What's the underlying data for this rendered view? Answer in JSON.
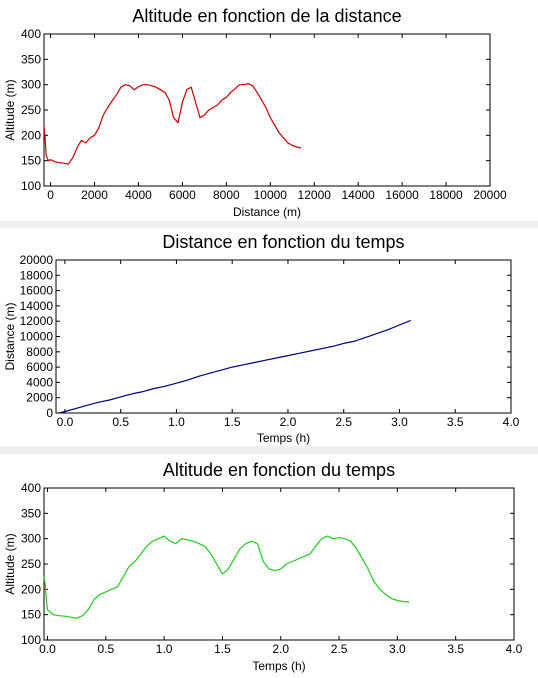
{
  "chart_data": [
    {
      "type": "line",
      "title": "Altitude en fonction de la distance",
      "xlabel": "Distance (m)",
      "ylabel": "Altitude (m)",
      "xlim": [
        -300,
        20000
      ],
      "ylim": [
        100,
        400
      ],
      "xticks": [
        0,
        2000,
        4000,
        6000,
        8000,
        10000,
        12000,
        14000,
        16000,
        18000,
        20000
      ],
      "yticks": [
        100,
        150,
        200,
        250,
        300,
        350,
        400
      ],
      "grid": false,
      "color": "#cc0000",
      "series": [
        {
          "x": [
            -300,
            -250,
            -200,
            -100,
            0,
            200,
            400,
            600,
            800,
            1000,
            1200,
            1400,
            1600,
            1800,
            2000,
            2200,
            2400,
            2600,
            2800,
            3000,
            3200,
            3400,
            3600,
            3800,
            4000,
            4200,
            4400,
            4600,
            4800,
            5000,
            5200,
            5400,
            5600,
            5800,
            6000,
            6200,
            6400,
            6600,
            6800,
            7000,
            7200,
            7400,
            7600,
            7800,
            8000,
            8200,
            8400,
            8600,
            8800,
            9000,
            9200,
            9400,
            9600,
            9800,
            10000,
            10200,
            10400,
            10600,
            10800,
            11000,
            11200,
            11400
          ],
          "y": [
            220,
            195,
            160,
            150,
            152,
            148,
            146,
            145,
            143,
            155,
            175,
            190,
            185,
            195,
            200,
            215,
            240,
            255,
            268,
            280,
            295,
            300,
            298,
            290,
            296,
            300,
            300,
            298,
            295,
            290,
            285,
            270,
            235,
            225,
            265,
            290,
            295,
            265,
            235,
            240,
            250,
            255,
            260,
            270,
            275,
            285,
            292,
            300,
            300,
            302,
            298,
            285,
            270,
            255,
            235,
            220,
            205,
            195,
            185,
            180,
            177,
            175
          ]
        }
      ]
    },
    {
      "type": "line",
      "title": "Distance en fonction du temps",
      "xlabel": "Temps (h)",
      "ylabel": "Distance (m)",
      "xlim": [
        -0.08,
        4.0
      ],
      "ylim": [
        0,
        20000
      ],
      "xticks": [
        0.0,
        0.5,
        1.0,
        1.5,
        2.0,
        2.5,
        3.0,
        3.5,
        4.0
      ],
      "xtick_labels": [
        "0.0",
        "0.5",
        "1.0",
        "1.5",
        "2.0",
        "2.5",
        "3.0",
        "3.5",
        "4.0"
      ],
      "yticks": [
        0,
        2000,
        4000,
        6000,
        8000,
        10000,
        12000,
        14000,
        16000,
        18000,
        20000
      ],
      "grid": false,
      "color": "#000080",
      "series": [
        {
          "x": [
            -0.05,
            0.0,
            0.1,
            0.2,
            0.3,
            0.4,
            0.5,
            0.6,
            0.7,
            0.8,
            0.9,
            1.0,
            1.1,
            1.2,
            1.3,
            1.4,
            1.5,
            1.6,
            1.7,
            1.8,
            1.9,
            2.0,
            2.1,
            2.2,
            2.3,
            2.4,
            2.5,
            2.6,
            2.7,
            2.8,
            2.9,
            3.0,
            3.1
          ],
          "y": [
            0,
            200,
            600,
            1000,
            1400,
            1700,
            2100,
            2500,
            2800,
            3200,
            3500,
            3900,
            4300,
            4800,
            5200,
            5600,
            6000,
            6300,
            6600,
            6900,
            7200,
            7500,
            7800,
            8100,
            8400,
            8700,
            9100,
            9400,
            9900,
            10400,
            10900,
            11500,
            12100
          ]
        }
      ]
    },
    {
      "type": "line",
      "title": "Altitude en fonction du temps",
      "xlabel": "Temps (h)",
      "ylabel": "Altitude (m)",
      "xlim": [
        -0.03,
        4.0
      ],
      "ylim": [
        100,
        400
      ],
      "xticks": [
        0.0,
        0.5,
        1.0,
        1.5,
        2.0,
        2.5,
        3.0,
        3.5,
        4.0
      ],
      "xtick_labels": [
        "0.0",
        "0.5",
        "1.0",
        "1.5",
        "2.0",
        "2.5",
        "3.0",
        "3.5",
        "4.0"
      ],
      "yticks": [
        100,
        150,
        200,
        250,
        300,
        350,
        400
      ],
      "grid": false,
      "color": "#22cc22",
      "series": [
        {
          "x": [
            -0.03,
            -0.02,
            -0.01,
            0.0,
            0.05,
            0.1,
            0.15,
            0.2,
            0.25,
            0.3,
            0.35,
            0.4,
            0.45,
            0.5,
            0.55,
            0.6,
            0.65,
            0.7,
            0.75,
            0.8,
            0.85,
            0.9,
            0.95,
            1.0,
            1.05,
            1.1,
            1.15,
            1.2,
            1.25,
            1.3,
            1.35,
            1.4,
            1.45,
            1.5,
            1.55,
            1.6,
            1.65,
            1.7,
            1.75,
            1.8,
            1.85,
            1.9,
            1.95,
            2.0,
            2.05,
            2.1,
            2.15,
            2.2,
            2.25,
            2.3,
            2.35,
            2.4,
            2.45,
            2.5,
            2.55,
            2.6,
            2.65,
            2.7,
            2.75,
            2.8,
            2.85,
            2.9,
            2.95,
            3.0,
            3.05,
            3.1
          ],
          "y": [
            225,
            210,
            180,
            160,
            150,
            148,
            147,
            145,
            143,
            148,
            160,
            180,
            190,
            195,
            200,
            205,
            225,
            245,
            255,
            270,
            285,
            295,
            300,
            305,
            295,
            290,
            300,
            298,
            295,
            290,
            285,
            270,
            250,
            230,
            240,
            260,
            280,
            290,
            295,
            290,
            255,
            240,
            237,
            240,
            250,
            255,
            260,
            265,
            270,
            285,
            300,
            305,
            300,
            302,
            300,
            295,
            280,
            260,
            240,
            215,
            200,
            190,
            182,
            178,
            176,
            175
          ]
        }
      ]
    }
  ]
}
